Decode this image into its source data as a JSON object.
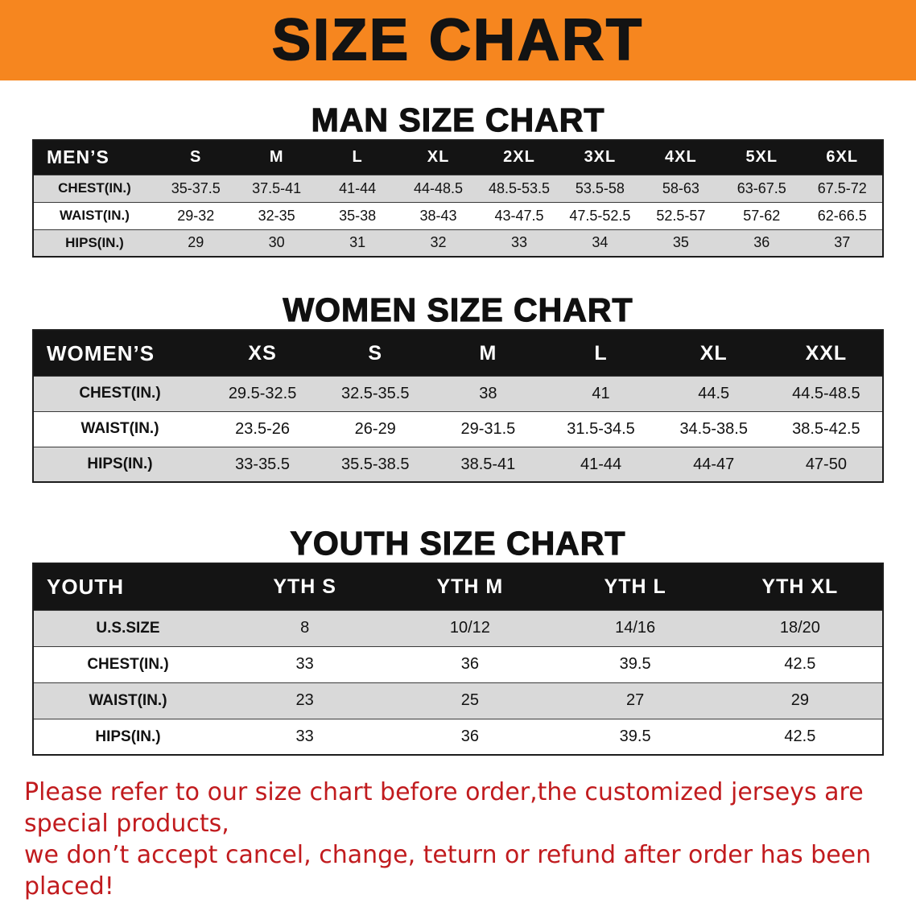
{
  "banner": {
    "title": "SIZE CHART",
    "bg_color": "#f6861f",
    "text_color": "#131313"
  },
  "men": {
    "heading": "MAN SIZE CHART",
    "table": {
      "label": "MEN’S",
      "columns": [
        "S",
        "M",
        "L",
        "XL",
        "2XL",
        "3XL",
        "4XL",
        "5XL",
        "6XL"
      ],
      "rows": [
        {
          "label": "CHEST(IN.)",
          "values": [
            "35-37.5",
            "37.5-41",
            "41-44",
            "44-48.5",
            "48.5-53.5",
            "53.5-58",
            "58-63",
            "63-67.5",
            "67.5-72"
          ]
        },
        {
          "label": "WAIST(IN.)",
          "values": [
            "29-32",
            "32-35",
            "35-38",
            "38-43",
            "43-47.5",
            "47.5-52.5",
            "52.5-57",
            "57-62",
            "62-66.5"
          ]
        },
        {
          "label": "HIPS(IN.)",
          "values": [
            "29",
            "30",
            "31",
            "32",
            "33",
            "34",
            "35",
            "36",
            "37"
          ]
        }
      ]
    }
  },
  "women": {
    "heading": "WOMEN SIZE CHART",
    "table": {
      "label": "WOMEN’S",
      "columns": [
        "XS",
        "S",
        "M",
        "L",
        "XL",
        "XXL"
      ],
      "rows": [
        {
          "label": "CHEST(IN.)",
          "values": [
            "29.5-32.5",
            "32.5-35.5",
            "38",
            "41",
            "44.5",
            "44.5-48.5"
          ]
        },
        {
          "label": "WAIST(IN.)",
          "values": [
            "23.5-26",
            "26-29",
            "29-31.5",
            "31.5-34.5",
            "34.5-38.5",
            "38.5-42.5"
          ]
        },
        {
          "label": "HIPS(IN.)",
          "values": [
            "33-35.5",
            "35.5-38.5",
            "38.5-41",
            "41-44",
            "44-47",
            "47-50"
          ]
        }
      ]
    }
  },
  "youth": {
    "heading": "YOUTH SIZE CHART",
    "table": {
      "label": "YOUTH",
      "columns": [
        "YTH S",
        "YTH M",
        "YTH L",
        "YTH XL"
      ],
      "rows": [
        {
          "label": "U.S.SIZE",
          "values": [
            "8",
            "10/12",
            "14/16",
            "18/20"
          ]
        },
        {
          "label": "CHEST(IN.)",
          "values": [
            "33",
            "36",
            "39.5",
            "42.5"
          ]
        },
        {
          "label": "WAIST(IN.)",
          "values": [
            "23",
            "25",
            "27",
            "29"
          ]
        },
        {
          "label": "HIPS(IN.)",
          "values": [
            "33",
            "36",
            "39.5",
            "42.5"
          ]
        }
      ]
    }
  },
  "disclaimer": {
    "color": "#c11b1e",
    "lines": [
      "Please refer to our size chart before order,the customized jerseys are special products,",
      "we don’t accept cancel, change, teturn or refund after order has been placed!"
    ]
  }
}
